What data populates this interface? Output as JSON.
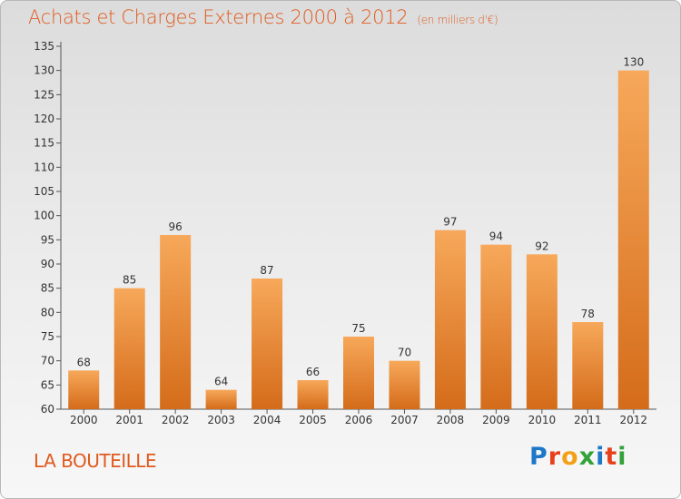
{
  "header": {
    "title": "Achats et Charges Externes 2000 à 2012",
    "subtitle": "(en milliers d'€)"
  },
  "footer": {
    "commune": "LA BOUTEILLE",
    "logo_text": "Proxiti"
  },
  "colors": {
    "bar_top": "#f7a85a",
    "bar_bottom": "#d46c1a",
    "title": "#e05a1e"
  },
  "chart_data": {
    "type": "bar",
    "title": "Achats et Charges Externes 2000 à 2012",
    "subtitle": "(en milliers d'€)",
    "categories": [
      "2000",
      "2001",
      "2002",
      "2003",
      "2004",
      "2005",
      "2006",
      "2007",
      "2008",
      "2009",
      "2010",
      "2011",
      "2012"
    ],
    "values": [
      68,
      85,
      96,
      64,
      87,
      66,
      75,
      70,
      97,
      94,
      92,
      78,
      130
    ],
    "ylim": [
      60,
      135
    ],
    "yticks": [
      60,
      65,
      70,
      75,
      80,
      85,
      90,
      95,
      100,
      105,
      110,
      115,
      120,
      125,
      130,
      135
    ],
    "grid": false,
    "data_labels": true
  }
}
